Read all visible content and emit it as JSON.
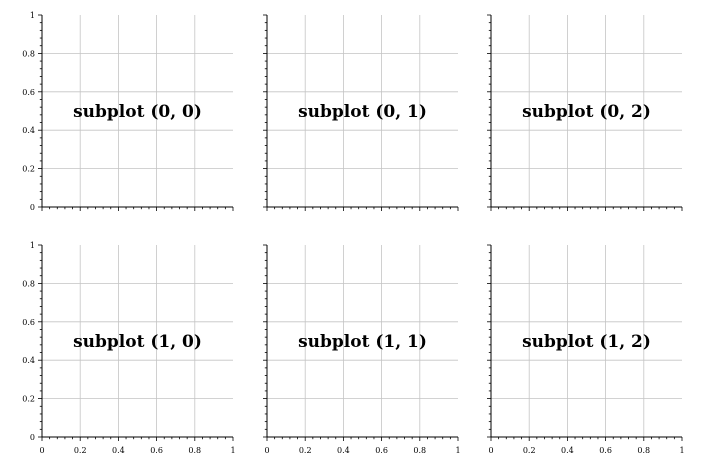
{
  "chart_data": {
    "type": "subplot-grid",
    "rows": 2,
    "cols": 3,
    "sharex": true,
    "sharey": true,
    "grid": true,
    "xlim": [
      0,
      1
    ],
    "ylim": [
      0,
      1
    ],
    "xticks": [
      "0",
      "0.2",
      "0.4",
      "0.6",
      "0.8",
      "1"
    ],
    "yticks": [
      "0",
      "0.2",
      "0.4",
      "0.6",
      "0.8",
      "1"
    ],
    "panels": [
      {
        "row": 0,
        "col": 0,
        "label": "subplot (0, 0)"
      },
      {
        "row": 0,
        "col": 1,
        "label": "subplot (0, 1)"
      },
      {
        "row": 0,
        "col": 2,
        "label": "subplot (0, 2)"
      },
      {
        "row": 1,
        "col": 0,
        "label": "subplot (1, 0)"
      },
      {
        "row": 1,
        "col": 1,
        "label": "subplot (1, 1)"
      },
      {
        "row": 1,
        "col": 2,
        "label": "subplot (1, 2)"
      }
    ]
  }
}
